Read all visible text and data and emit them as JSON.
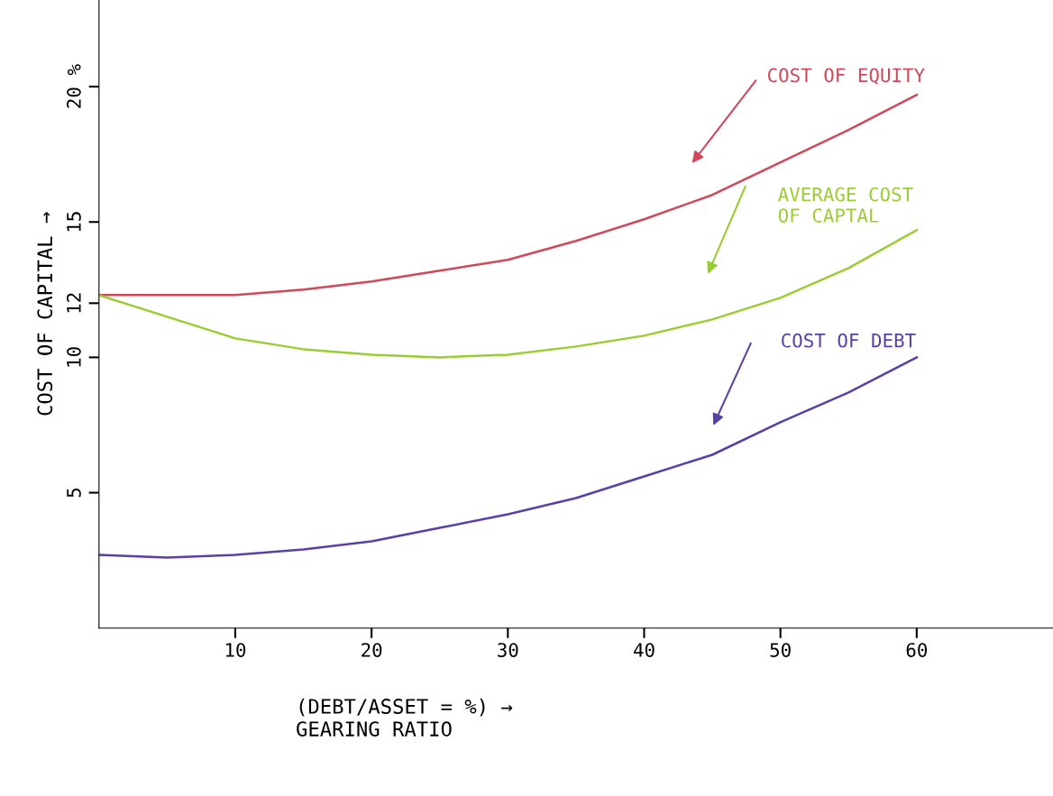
{
  "chart_data": {
    "type": "line",
    "xlabel": "(DEBT/ASSET = %) →\nGEARING RATIO",
    "ylabel": "COST OF CAPITAL →",
    "x": [
      0,
      5,
      10,
      15,
      20,
      25,
      30,
      35,
      40,
      45,
      50,
      55,
      60
    ],
    "series": [
      {
        "color": "#d0485a",
        "values": [
          12.3,
          12.3,
          12.3,
          12.5,
          12.8,
          13.2,
          13.6,
          14.3,
          15.1,
          16.0,
          17.2,
          18.4,
          19.7
        ]
      },
      {
        "color": "#9acd32",
        "values": [
          12.3,
          11.5,
          10.7,
          10.3,
          10.1,
          10.0,
          10.1,
          10.4,
          10.8,
          11.4,
          12.2,
          13.3,
          14.7
        ]
      },
      {
        "color": "#5b3fa8",
        "values": [
          2.7,
          2.6,
          2.7,
          2.9,
          3.2,
          3.7,
          4.2,
          4.8,
          5.6,
          6.4,
          7.6,
          8.7,
          10.0
        ]
      }
    ],
    "annotations": [
      "COST OF EQUITY",
      "AVERAGE COST\nOF CAPTAL",
      "COST OF DEBT"
    ],
    "xlim": [
      0,
      70
    ],
    "ylim": [
      0,
      23.2
    ],
    "xticks": [
      10,
      20,
      30,
      40,
      50,
      60
    ],
    "yticks": [
      5,
      10,
      12,
      15,
      {
        "value": 20,
        "label": "20 %"
      }
    ],
    "grid": false,
    "legend": false,
    "marker": "none",
    "line_style": "solid"
  }
}
